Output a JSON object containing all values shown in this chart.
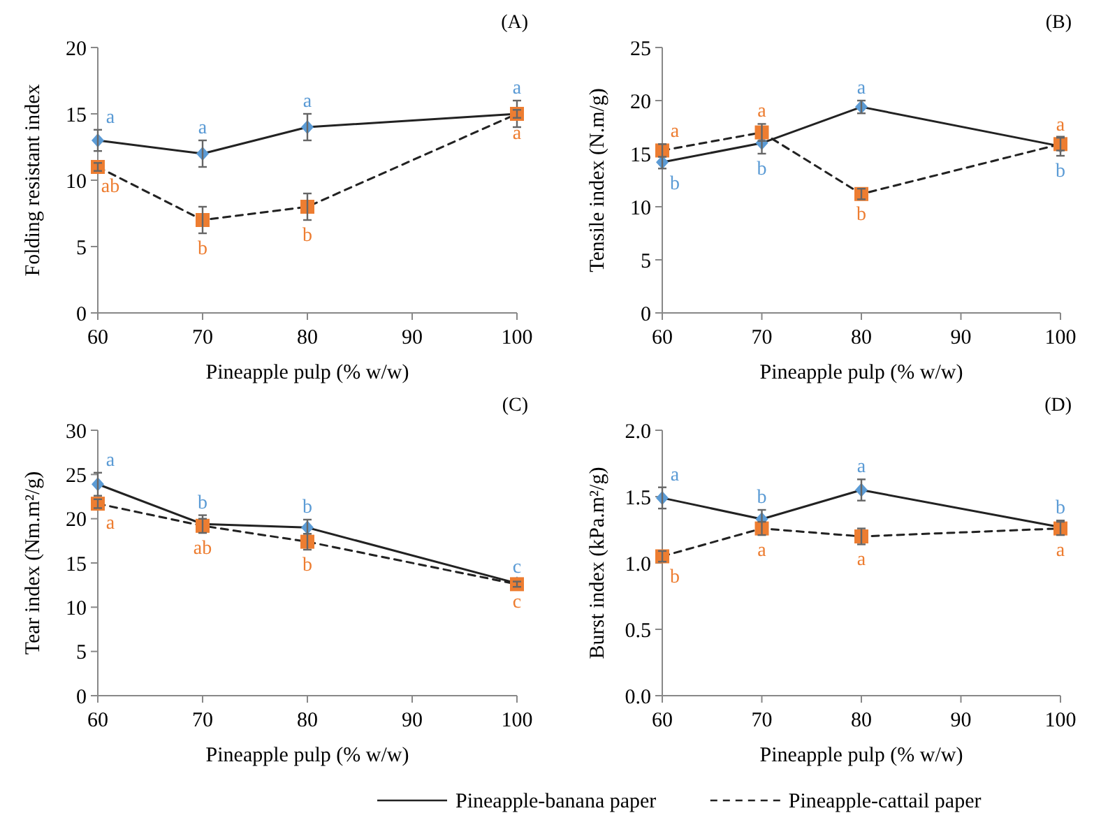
{
  "chart_data": [
    {
      "type": "line",
      "title": "(A)",
      "xlabel": "Pineapple pulp (% w/w)",
      "ylabel": "Folding resistant index",
      "x": [
        60,
        70,
        80,
        100
      ],
      "xlim": [
        60,
        100
      ],
      "xticks": [
        60,
        70,
        80,
        90,
        100
      ],
      "ylim": [
        0,
        20
      ],
      "yticks": [
        0,
        5,
        10,
        15,
        20
      ],
      "grid": false,
      "legend": false,
      "series": [
        {
          "color": "#5b9bd5",
          "marker": "diamond",
          "line_style": "solid",
          "values": [
            13,
            12,
            14,
            15
          ],
          "errors": [
            0.8,
            1,
            1,
            1
          ],
          "value_labels": [
            "a",
            "a",
            "a",
            "a"
          ]
        },
        {
          "color": "#ed7d31",
          "marker": "square",
          "line_style": "dashed",
          "values": [
            11,
            7,
            8,
            15
          ],
          "errors": [
            0.3,
            1,
            1,
            0.3
          ],
          "value_labels": [
            "ab",
            "b",
            "b",
            "a"
          ]
        }
      ]
    },
    {
      "type": "line",
      "title": "(B)",
      "xlabel": "Pineapple pulp (% w/w)",
      "ylabel": "Tensile index (N.m/g)",
      "x": [
        60,
        70,
        80,
        100
      ],
      "xlim": [
        60,
        100
      ],
      "xticks": [
        60,
        70,
        80,
        90,
        100
      ],
      "ylim": [
        0,
        25
      ],
      "yticks": [
        0,
        5,
        10,
        15,
        20,
        25
      ],
      "grid": false,
      "legend": false,
      "series": [
        {
          "color": "#5b9bd5",
          "marker": "diamond",
          "line_style": "solid",
          "values": [
            14.2,
            16,
            19.4,
            15.7
          ],
          "errors": [
            0.6,
            1,
            0.6,
            0.9
          ],
          "value_labels": [
            "b",
            "b",
            "a",
            "b"
          ]
        },
        {
          "color": "#ed7d31",
          "marker": "square",
          "line_style": "dashed",
          "values": [
            15.3,
            17,
            11.2,
            15.9
          ],
          "errors": [
            0.6,
            0.8,
            0.5,
            0.6
          ],
          "value_labels": [
            "a",
            "a",
            "b",
            "a"
          ]
        }
      ]
    },
    {
      "type": "line",
      "title": "(C)",
      "xlabel": "Pineapple pulp (% w/w)",
      "ylabel": "Tear index (Nm.m²/g)",
      "x": [
        60,
        70,
        80,
        100
      ],
      "xlim": [
        60,
        100
      ],
      "xticks": [
        60,
        70,
        80,
        90,
        100
      ],
      "ylim": [
        0,
        30
      ],
      "yticks": [
        0,
        5,
        10,
        15,
        20,
        25,
        30
      ],
      "grid": false,
      "legend": false,
      "series": [
        {
          "color": "#5b9bd5",
          "marker": "diamond",
          "line_style": "solid",
          "values": [
            23.9,
            19.4,
            19,
            12.7
          ],
          "errors": [
            1.3,
            1,
            0.9,
            0.4
          ],
          "value_labels": [
            "a",
            "b",
            "b",
            "c"
          ]
        },
        {
          "color": "#ed7d31",
          "marker": "square",
          "line_style": "dashed",
          "values": [
            21.7,
            19.2,
            17.4,
            12.6
          ],
          "errors": [
            0.5,
            0.8,
            0.9,
            0.3
          ],
          "value_labels": [
            "a",
            "ab",
            "b",
            "c"
          ]
        }
      ]
    },
    {
      "type": "line",
      "title": "(D)",
      "xlabel": "Pineapple pulp (% w/w)",
      "ylabel": "Burst index (kPa.m²/g)",
      "x": [
        60,
        70,
        80,
        100
      ],
      "xlim": [
        60,
        100
      ],
      "xticks": [
        60,
        70,
        80,
        90,
        100
      ],
      "ylim": [
        0,
        2
      ],
      "yticks": [
        {
          "value": 0,
          "label": "0.0"
        },
        0.5,
        {
          "value": 1,
          "label": "1.0"
        },
        1.5,
        {
          "value": 2,
          "label": "2.0"
        }
      ],
      "grid": false,
      "legend": "bottom",
      "series": [
        {
          "name": "Pineapple-banana paper",
          "color": "#5b9bd5",
          "marker": "diamond",
          "line_style": "solid",
          "values": [
            1.49,
            1.33,
            1.55,
            1.27
          ],
          "errors": [
            0.08,
            0.07,
            0.08,
            0.05
          ],
          "value_labels": [
            "a",
            "b",
            "a",
            "b"
          ]
        },
        {
          "name": "Pineapple-cattail paper",
          "color": "#ed7d31",
          "marker": "square",
          "line_style": "dashed",
          "values": [
            1.05,
            1.26,
            1.2,
            1.26
          ],
          "errors": [
            0.04,
            0.05,
            0.06,
            0.05
          ],
          "value_labels": [
            "b",
            "a",
            "a",
            "a"
          ]
        }
      ]
    }
  ]
}
